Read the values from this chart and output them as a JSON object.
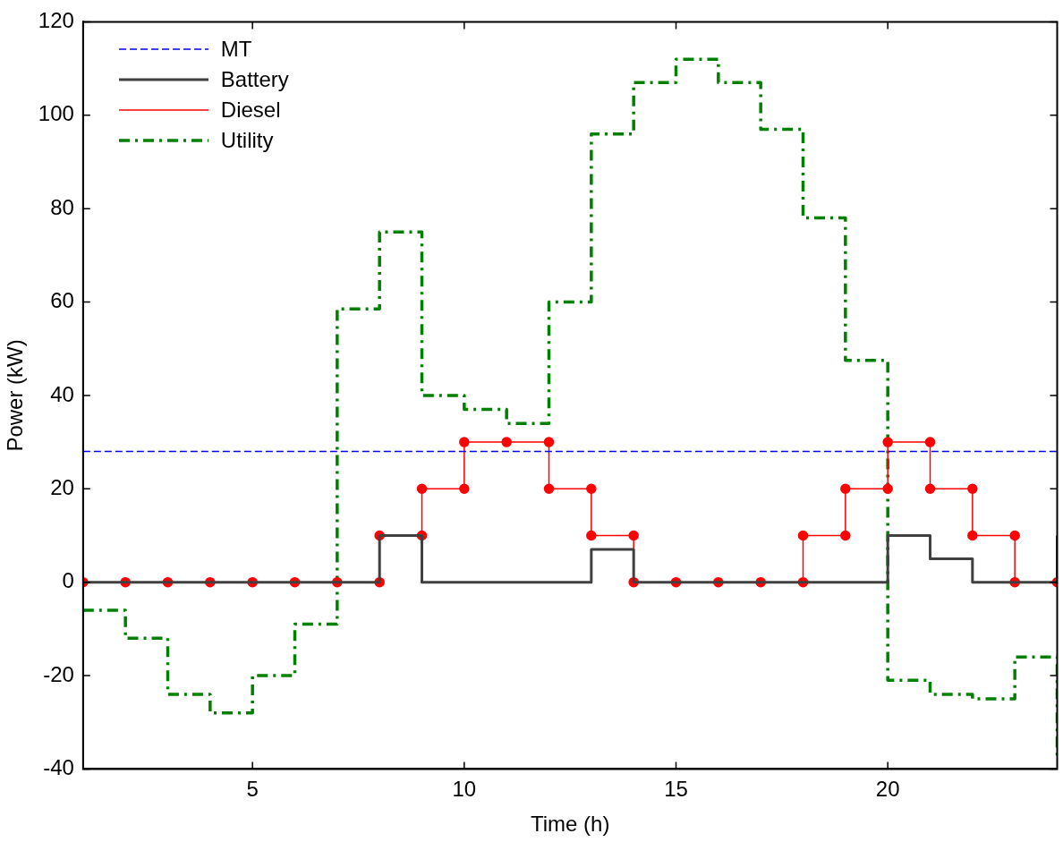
{
  "chart_data": {
    "type": "step",
    "xlabel": "Time (h)",
    "ylabel": "Power (kW)",
    "x": [
      1,
      2,
      3,
      4,
      5,
      6,
      7,
      8,
      9,
      10,
      11,
      12,
      13,
      14,
      15,
      16,
      17,
      18,
      19,
      20,
      21,
      22,
      23,
      24
    ],
    "xlim": [
      1,
      24
    ],
    "xticks": [
      5,
      10,
      15,
      20
    ],
    "ylim": [
      -40,
      120
    ],
    "yticks": [
      -40,
      -20,
      0,
      20,
      40,
      60,
      80,
      100,
      120
    ],
    "grid": false,
    "legend": "top left",
    "marker": "none",
    "series": [
      {
        "name": "MT",
        "type": "line",
        "color": "#0000ff",
        "line_style": "dashed",
        "values": [
          28,
          28,
          28,
          28,
          28,
          28,
          28,
          28,
          28,
          28,
          28,
          28,
          28,
          28,
          28,
          28,
          28,
          28,
          28,
          28,
          28,
          28,
          28,
          28
        ]
      },
      {
        "name": "Battery",
        "type": "step",
        "color": "#404040",
        "values": [
          0,
          0,
          0,
          0,
          0,
          0,
          0,
          10,
          0,
          0,
          0,
          0,
          7,
          0,
          0,
          0,
          0,
          0,
          0,
          10,
          5,
          0,
          0,
          10
        ]
      },
      {
        "name": "Diesel",
        "type": "line",
        "color": "#ff0000",
        "marker": "circle",
        "x": [
          1,
          2,
          3,
          4,
          5,
          6,
          7,
          8,
          8,
          9,
          9,
          10,
          10,
          11,
          12,
          12,
          13,
          13,
          14,
          14,
          15,
          16,
          17,
          18,
          18,
          19,
          19,
          20,
          20,
          21,
          21,
          22,
          22,
          23,
          23,
          24
        ],
        "values": [
          0,
          0,
          0,
          0,
          0,
          0,
          0,
          0,
          10,
          10,
          20,
          20,
          30,
          30,
          30,
          20,
          20,
          10,
          10,
          0,
          0,
          0,
          0,
          0,
          10,
          10,
          20,
          20,
          30,
          30,
          20,
          20,
          10,
          10,
          0,
          0
        ]
      },
      {
        "name": "Utility",
        "type": "step",
        "color": "#008000",
        "line_style": "dashdot",
        "values": [
          -6,
          -12,
          -24,
          -28,
          -20,
          -9,
          58.5,
          75,
          40,
          37,
          34,
          60,
          96,
          107,
          112,
          107,
          97,
          78,
          47.5,
          -21,
          -24,
          -25,
          -16,
          -38
        ]
      }
    ]
  }
}
